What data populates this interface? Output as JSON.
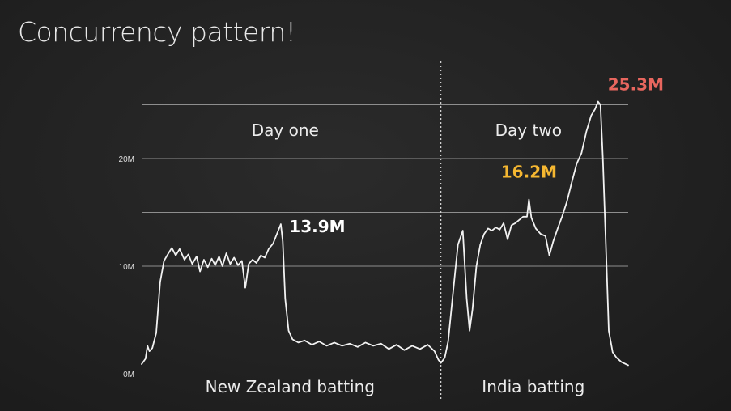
{
  "title": "Concurrency pattern!",
  "colors": {
    "background": "#222222",
    "line": "#f2f2f2",
    "grid": "#8e8e8e",
    "peak_day1": "#ffffff",
    "peak_day2_mid": "#f5b731",
    "peak_day2_max": "#e8665e"
  },
  "chart_data": {
    "type": "line",
    "title": "Concurrency pattern!",
    "xlabel": "",
    "ylabel": "",
    "ylim": [
      0,
      27.2
    ],
    "y_unit": "M",
    "yticks": [
      {
        "value": 0,
        "label": "0M"
      },
      {
        "value": 10,
        "label": "10M"
      },
      {
        "value": 20,
        "label": "20M"
      }
    ],
    "gridlines": [
      5,
      10,
      15,
      20,
      25
    ],
    "x_range": [
      0,
      100
    ],
    "day_divider": 61.5,
    "sections": [
      {
        "label": "Day one",
        "x": 29.5
      },
      {
        "label": "Day two",
        "x": 79.5
      }
    ],
    "innings": [
      {
        "label": "New Zealand batting",
        "x": 30.5
      },
      {
        "label": "India batting",
        "x": 80.5
      }
    ],
    "annotations": [
      {
        "label": "13.9M",
        "x": 29.0,
        "y": 13.9,
        "color_key": "peak_day1"
      },
      {
        "label": "16.2M",
        "x": 79.6,
        "y": 16.2,
        "color_key": "peak_day2_mid"
      },
      {
        "label": "25.3M",
        "x": 93.8,
        "y": 25.3,
        "color_key": "peak_day2_max"
      }
    ],
    "series": [
      {
        "values": [
          [
            0,
            0.9
          ],
          [
            0.8,
            1.4
          ],
          [
            1.2,
            2.6
          ],
          [
            1.6,
            2.1
          ],
          [
            2.2,
            2.4
          ],
          [
            3,
            3.8
          ],
          [
            3.8,
            8.5
          ],
          [
            4.6,
            10.5
          ],
          [
            5.5,
            11.2
          ],
          [
            6.2,
            11.7
          ],
          [
            7,
            11.0
          ],
          [
            7.8,
            11.6
          ],
          [
            8.8,
            10.6
          ],
          [
            9.6,
            11.1
          ],
          [
            10.4,
            10.2
          ],
          [
            11.3,
            10.9
          ],
          [
            12,
            9.5
          ],
          [
            12.8,
            10.6
          ],
          [
            13.6,
            9.9
          ],
          [
            14.4,
            10.7
          ],
          [
            15.1,
            10.1
          ],
          [
            15.9,
            10.9
          ],
          [
            16.6,
            10.0
          ],
          [
            17.4,
            11.2
          ],
          [
            18.2,
            10.2
          ],
          [
            19,
            10.8
          ],
          [
            19.8,
            10.1
          ],
          [
            20.6,
            10.5
          ],
          [
            21.3,
            8.0
          ],
          [
            22,
            10.2
          ],
          [
            22.8,
            10.6
          ],
          [
            23.6,
            10.3
          ],
          [
            24.5,
            11.0
          ],
          [
            25.3,
            10.8
          ],
          [
            26.1,
            11.6
          ],
          [
            27,
            12.1
          ],
          [
            27.8,
            13.0
          ],
          [
            28.6,
            13.9
          ],
          [
            29,
            12.3
          ],
          [
            29.5,
            7.0
          ],
          [
            30.2,
            4.0
          ],
          [
            31,
            3.2
          ],
          [
            32.2,
            2.9
          ],
          [
            33.5,
            3.1
          ],
          [
            35,
            2.7
          ],
          [
            36.5,
            3.0
          ],
          [
            38,
            2.6
          ],
          [
            39.6,
            2.9
          ],
          [
            41.2,
            2.6
          ],
          [
            42.8,
            2.8
          ],
          [
            44.4,
            2.5
          ],
          [
            46,
            2.9
          ],
          [
            47.6,
            2.6
          ],
          [
            49.2,
            2.8
          ],
          [
            50.8,
            2.3
          ],
          [
            52.4,
            2.7
          ],
          [
            54,
            2.2
          ],
          [
            55.6,
            2.6
          ],
          [
            57.2,
            2.3
          ],
          [
            58.8,
            2.7
          ],
          [
            60.2,
            2.1
          ],
          [
            61,
            1.3
          ],
          [
            61.5,
            1.0
          ],
          [
            62.3,
            1.5
          ],
          [
            63,
            3.0
          ],
          [
            64,
            7.5
          ],
          [
            65,
            12.0
          ],
          [
            66,
            13.3
          ],
          [
            66.8,
            7.0
          ],
          [
            67.4,
            4.0
          ],
          [
            68,
            6.0
          ],
          [
            68.8,
            10.0
          ],
          [
            69.6,
            12.0
          ],
          [
            70.4,
            13.0
          ],
          [
            71.2,
            13.5
          ],
          [
            72,
            13.3
          ],
          [
            72.8,
            13.6
          ],
          [
            73.6,
            13.4
          ],
          [
            74.4,
            14.0
          ],
          [
            75.2,
            12.5
          ],
          [
            76,
            13.8
          ],
          [
            76.8,
            14.0
          ],
          [
            77.6,
            14.3
          ],
          [
            78.4,
            14.6
          ],
          [
            79.2,
            14.6
          ],
          [
            79.6,
            16.2
          ],
          [
            80.1,
            14.5
          ],
          [
            81,
            13.5
          ],
          [
            82,
            13.0
          ],
          [
            83,
            12.8
          ],
          [
            83.8,
            11.0
          ],
          [
            84.6,
            12.3
          ],
          [
            85.5,
            13.5
          ],
          [
            86.4,
            14.6
          ],
          [
            87.4,
            16.0
          ],
          [
            88.4,
            17.8
          ],
          [
            89.4,
            19.5
          ],
          [
            90.4,
            20.5
          ],
          [
            91.4,
            22.5
          ],
          [
            92.4,
            24.0
          ],
          [
            93.2,
            24.6
          ],
          [
            93.8,
            25.3
          ],
          [
            94.3,
            25.0
          ],
          [
            94.8,
            20.0
          ],
          [
            95.4,
            12.0
          ],
          [
            96,
            4.0
          ],
          [
            96.8,
            2.0
          ],
          [
            97.6,
            1.5
          ],
          [
            98.6,
            1.1
          ],
          [
            100,
            0.8
          ]
        ]
      }
    ]
  }
}
